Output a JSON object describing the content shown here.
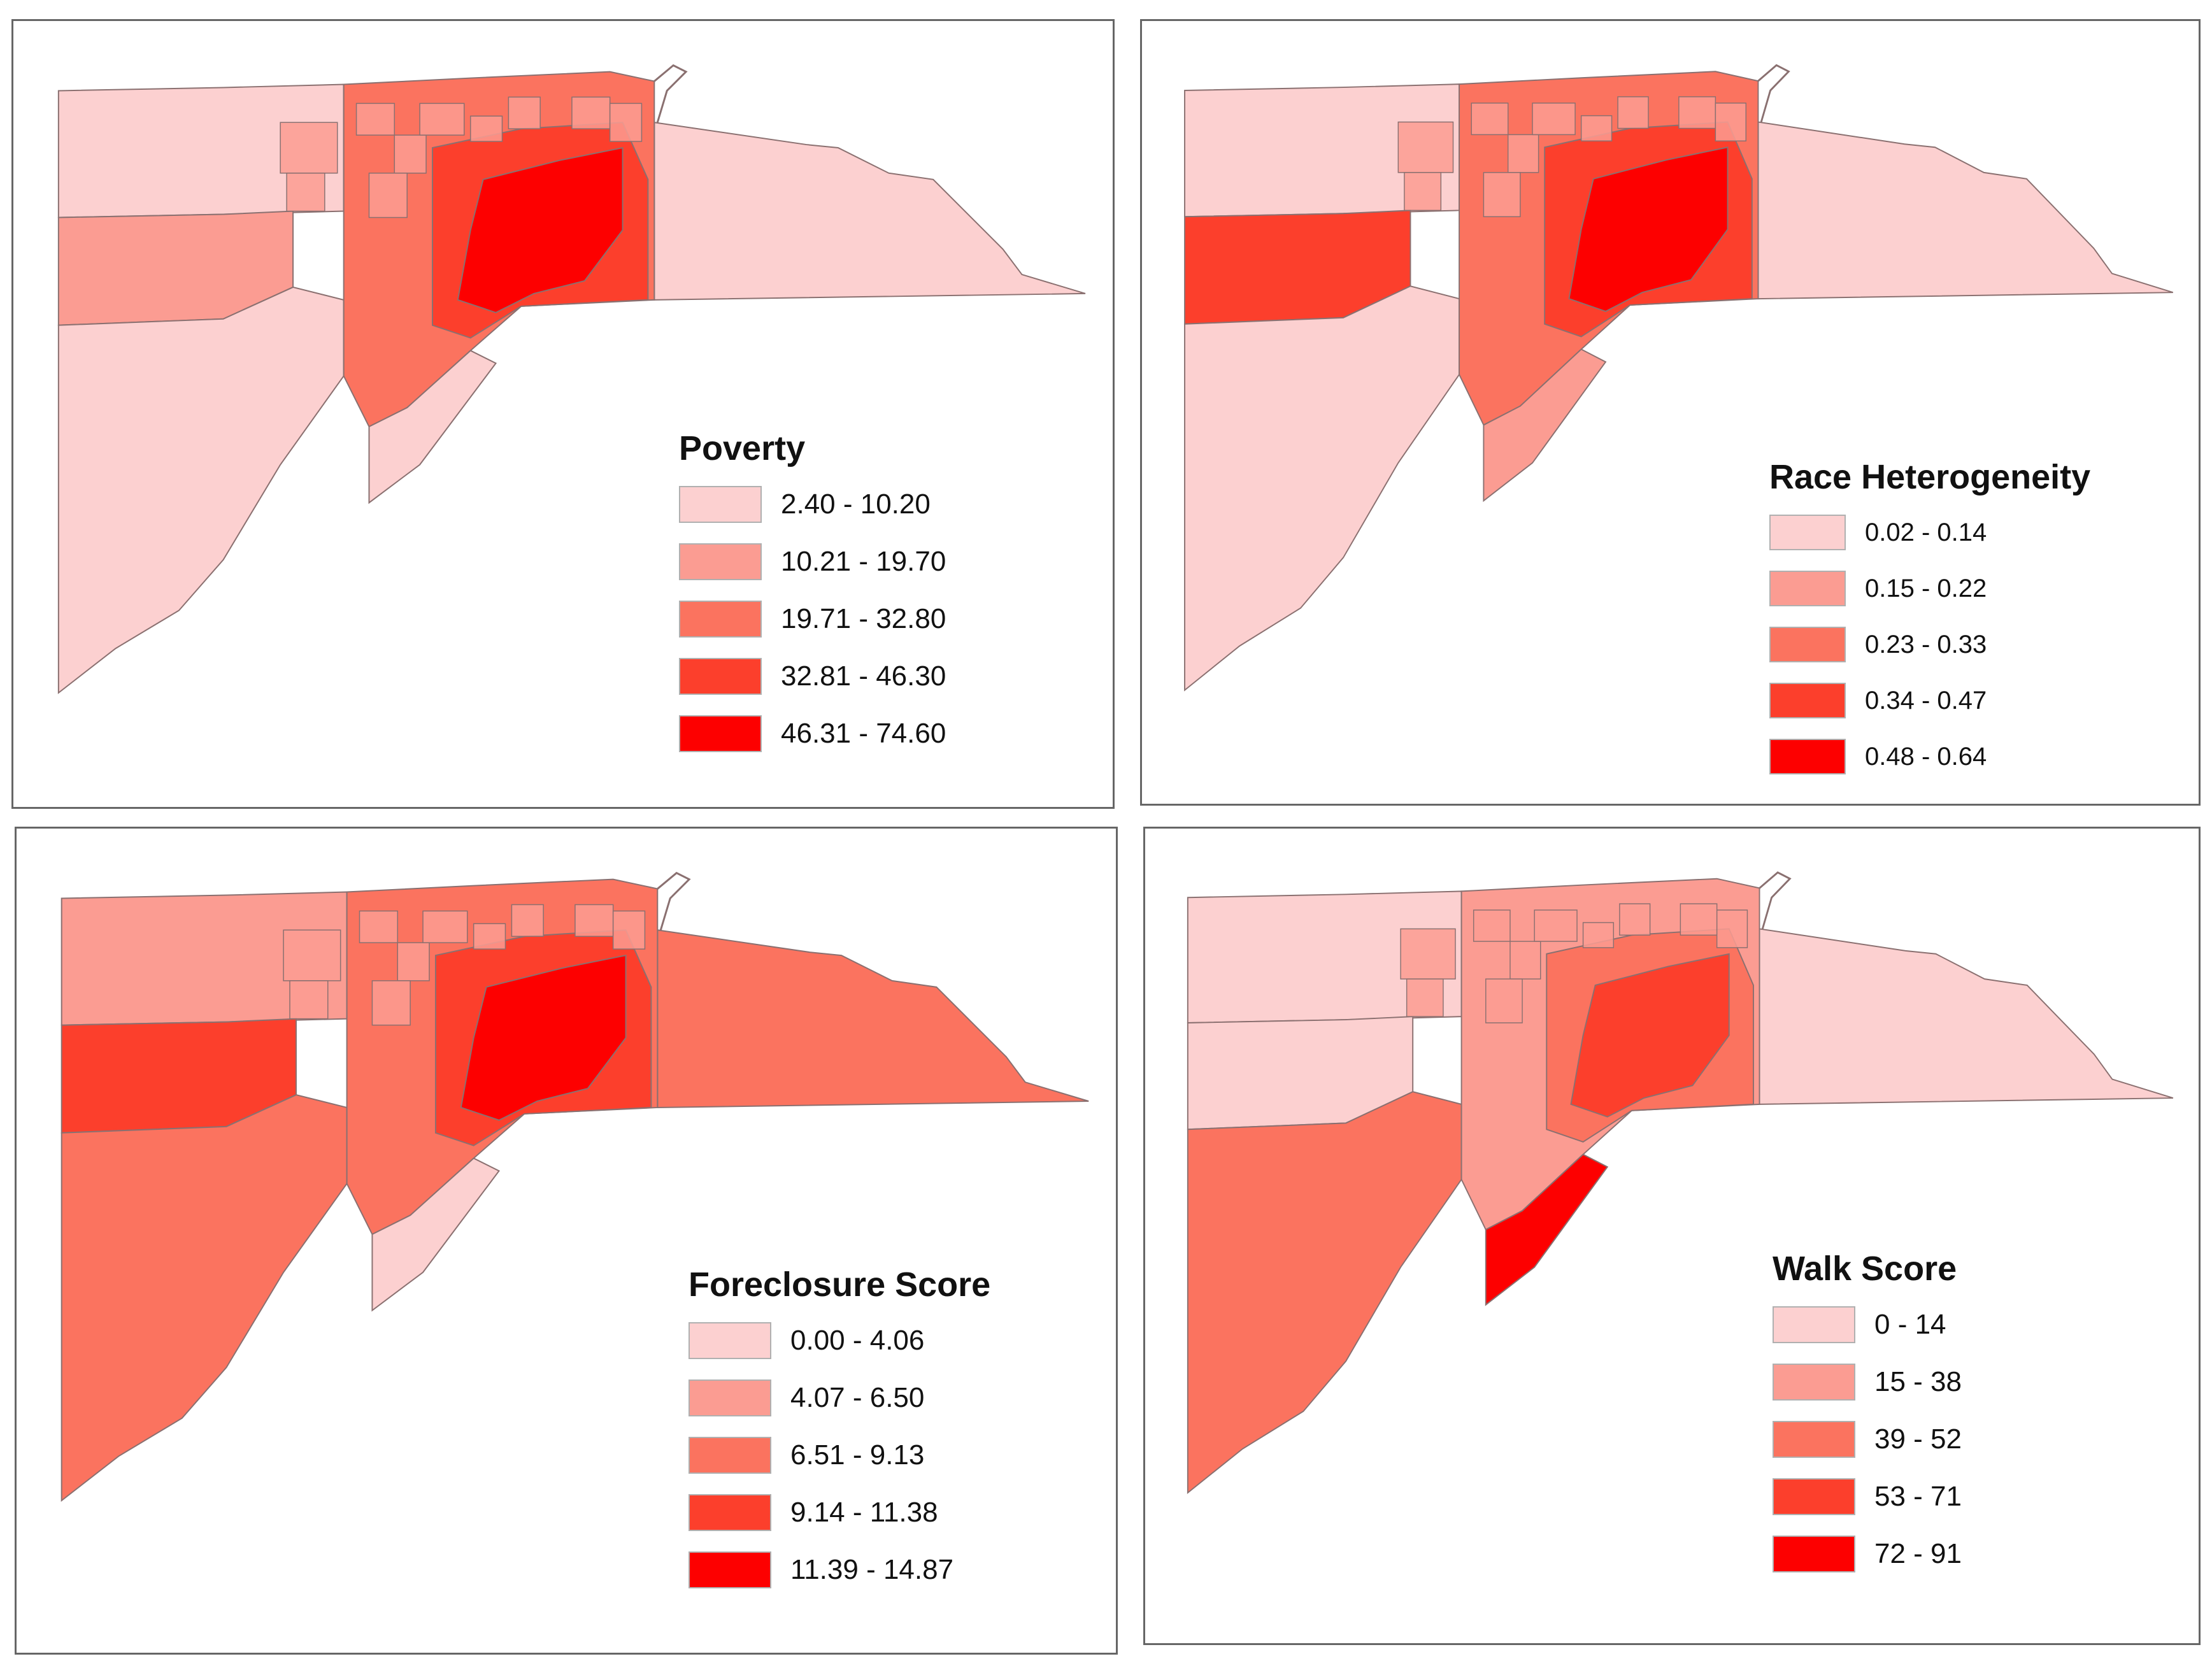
{
  "figure": {
    "panels": [
      {
        "id": "poverty",
        "legend_title": "Poverty",
        "classes": [
          "2.40 - 10.20",
          "10.21 - 19.70",
          "19.71 - 32.80",
          "32.81 - 46.30",
          "46.31 - 74.60"
        ]
      },
      {
        "id": "race",
        "legend_title": "Race Heterogeneity",
        "classes": [
          "0.02 - 0.14",
          "0.15 - 0.22",
          "0.23 - 0.33",
          "0.34 - 0.47",
          "0.48 - 0.64"
        ]
      },
      {
        "id": "foreclosure",
        "legend_title": "Foreclosure Score",
        "classes": [
          "0.00 - 4.06",
          "4.07 - 6.50",
          "6.51 - 9.13",
          "9.14 - 11.38",
          "11.39 - 14.87"
        ]
      },
      {
        "id": "walk",
        "legend_title": "Walk Score",
        "classes": [
          "0 - 14",
          "15 - 38",
          "39 - 52",
          "53 - 71",
          "72 - 91"
        ]
      }
    ]
  },
  "palette": [
    "#fcd0d0",
    "#fb9c92",
    "#fb735f",
    "#fc3f2c",
    "#fd0000"
  ],
  "map_colors": {
    "poverty": {
      "north_west": "#fcd0d0",
      "mid_west": "#fb9c92",
      "south_west": "#fcd0d0",
      "urban_core": "#fb735f",
      "urban_inner": "#fc3f2c",
      "urban_hot": "#fd0000",
      "east": "#fcd0d0",
      "south_shore": "#fcd0d0",
      "tracts": "#fb9c92"
    },
    "race": {
      "north_west": "#fcd0d0",
      "mid_west": "#fc3f2c",
      "south_west": "#fcd0d0",
      "urban_core": "#fb735f",
      "urban_inner": "#fc3f2c",
      "urban_hot": "#fd0000",
      "east": "#fcd0d0",
      "south_shore": "#fb9c92",
      "tracts": "#fb9c92"
    },
    "foreclosure": {
      "north_west": "#fb9c92",
      "mid_west": "#fc3f2c",
      "south_west": "#fb735f",
      "urban_core": "#fb735f",
      "urban_inner": "#fc3f2c",
      "urban_hot": "#fd0000",
      "east": "#fb735f",
      "south_shore": "#fcd0d0",
      "tracts": "#fb9c92"
    },
    "walk": {
      "north_west": "#fcd0d0",
      "mid_west": "#fcd0d0",
      "south_west": "#fb735f",
      "urban_core": "#fb9c92",
      "urban_inner": "#fb735f",
      "urban_hot": "#fc3f2c",
      "east": "#fcd0d0",
      "south_shore": "#fd0000",
      "tracts": "#fb9c92"
    }
  }
}
